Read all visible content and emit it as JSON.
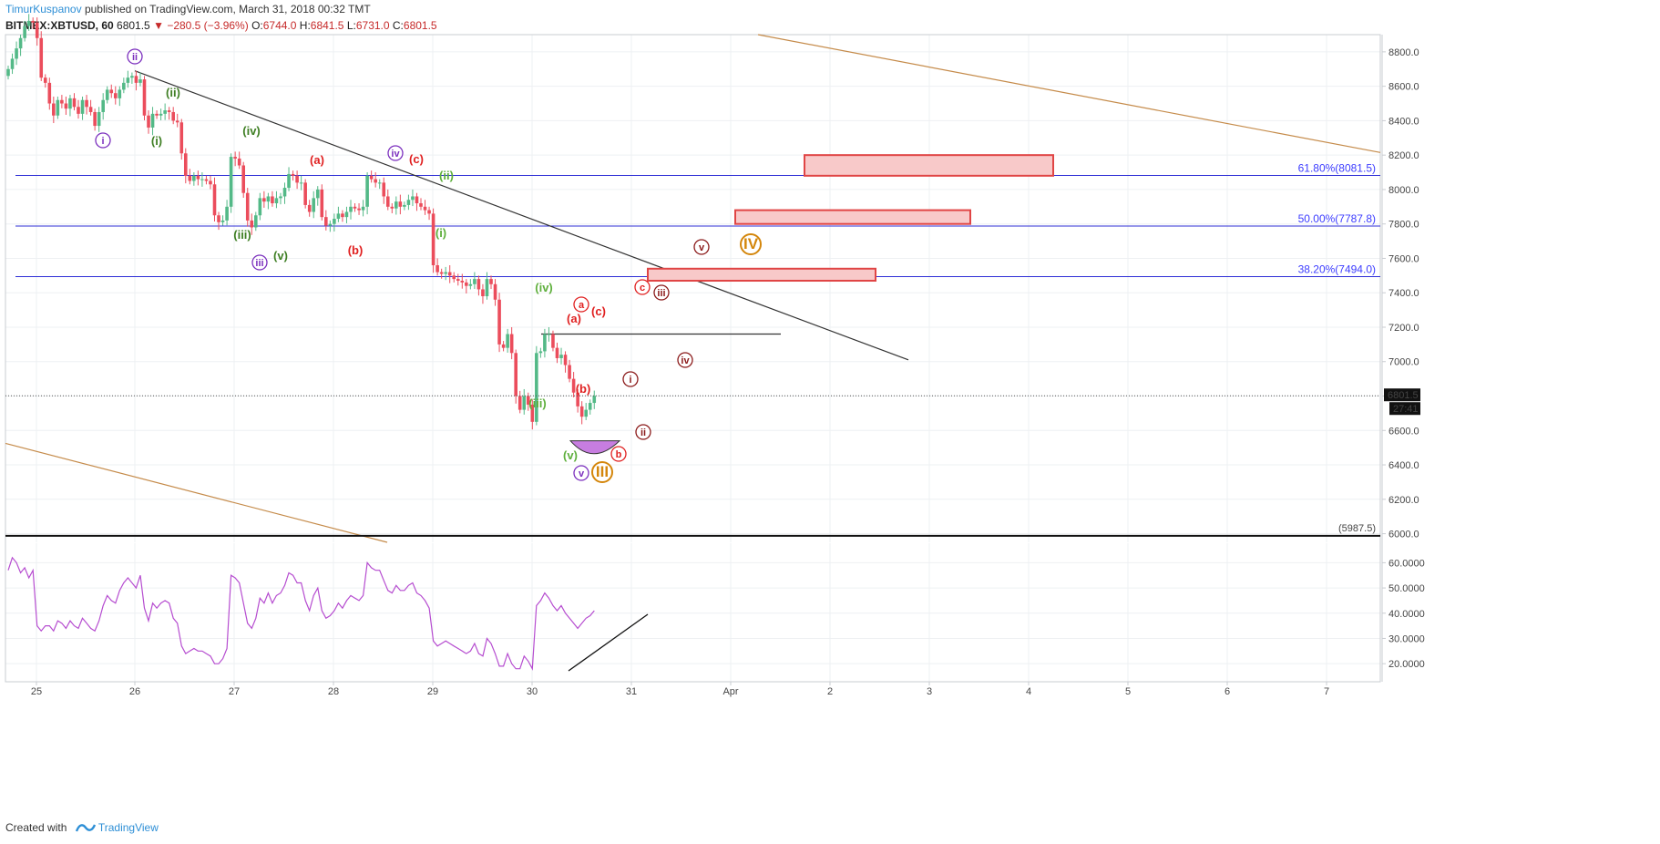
{
  "header": {
    "author": "TimurKuspanov",
    "published": "published on TradingView.com, March 31, 2018 00:32 TMT"
  },
  "symbol": {
    "name": "BITMEX:XBTUSD, 60",
    "last": "6801.5",
    "arrow": "▼",
    "change": "−280.5 (−3.96%)",
    "open_label": "O:",
    "open": "6744.0",
    "high_label": "H:",
    "high": "6841.5",
    "low_label": "L:",
    "low": "6731.0",
    "close_label": "C:",
    "close": "6801.5"
  },
  "footer": {
    "created_with": "Created with",
    "brand": "TradingView"
  },
  "colors": {
    "up": "#53b987",
    "down": "#eb4d5c",
    "fib": "#2f2fd6",
    "channel": "#c58b4a",
    "rsi": "#b64dd0",
    "zone_fill": "#f8c9c9",
    "zone_stroke": "#e04545"
  },
  "chart_data": {
    "type": "candlestick",
    "x_ticks": [
      "25",
      "26",
      "27",
      "28",
      "29",
      "30",
      "31",
      "Apr",
      "2",
      "3",
      "4",
      "5",
      "6",
      "7"
    ],
    "y_ticks": [
      "8800.0",
      "8600.0",
      "8400.0",
      "8200.0",
      "8000.0",
      "7800.0",
      "7600.0",
      "7400.0",
      "7200.0",
      "7000.0",
      "6800.0",
      "6600.0",
      "6400.0",
      "6200.0",
      "6000.0"
    ],
    "ylim": [
      5950,
      8900
    ],
    "last_price": "6801.5",
    "countdown": "27:41",
    "fib_levels": [
      {
        "label": "61.80%(8081.5)",
        "price": 8081.5
      },
      {
        "label": "50.00%(7787.8)",
        "price": 7787.8
      },
      {
        "label": "38.20%(7494.0)",
        "price": 7494.0
      }
    ],
    "support_label": "(5987.5)",
    "support_price": 5987.5,
    "closes": [
      8700,
      8760,
      8820,
      8880,
      8950,
      8980,
      8970,
      8880,
      8650,
      8620,
      8500,
      8430,
      8520,
      8500,
      8470,
      8530,
      8480,
      8440,
      8520,
      8480,
      8450,
      8370,
      8450,
      8520,
      8580,
      8560,
      8530,
      8580,
      8620,
      8650,
      8660,
      8620,
      8640,
      8430,
      8360,
      8440,
      8430,
      8440,
      8460,
      8450,
      8400,
      8390,
      8210,
      8080,
      8050,
      8080,
      8060,
      8060,
      8050,
      8030,
      7850,
      7810,
      7820,
      7900,
      8190,
      8180,
      8140,
      7980,
      7820,
      7780,
      7850,
      7950,
      7930,
      7960,
      7920,
      7950,
      7960,
      8010,
      8090,
      8080,
      8040,
      8040,
      7910,
      7870,
      7950,
      8000,
      7840,
      7790,
      7800,
      7830,
      7860,
      7840,
      7870,
      7900,
      7890,
      7880,
      7900,
      8080,
      8060,
      8040,
      8040,
      7960,
      7900,
      7890,
      7930,
      7900,
      7910,
      7940,
      7960,
      7920,
      7900,
      7880,
      7860,
      7560,
      7520,
      7510,
      7520,
      7500,
      7480,
      7470,
      7460,
      7440,
      7450,
      7480,
      7420,
      7380,
      7480,
      7450,
      7360,
      7100,
      7080,
      7160,
      7050,
      6800,
      6720,
      6800,
      6750,
      6650,
      7050,
      7060,
      7160,
      7160,
      7080,
      7020,
      7040,
      6980,
      6900,
      6820,
      6740,
      6680,
      6720,
      6760,
      6801.5
    ],
    "rsi": {
      "ylim": [
        15,
        67
      ],
      "y_ticks": [
        "60.0000",
        "50.0000",
        "40.0000",
        "30.0000",
        "20.0000"
      ],
      "values": [
        57,
        62,
        60,
        56,
        58,
        54,
        57,
        35,
        33,
        35,
        35,
        33,
        37,
        36,
        34,
        37,
        35,
        34,
        38,
        36,
        34,
        33,
        37,
        43,
        47,
        45,
        44,
        49,
        52,
        54,
        52,
        50,
        55,
        42,
        37,
        44,
        42,
        44,
        45,
        44,
        38,
        36,
        27,
        24,
        25,
        26,
        25,
        25,
        24,
        23,
        20,
        20,
        22,
        26,
        55,
        54,
        52,
        44,
        36,
        34,
        38,
        46,
        44,
        48,
        44,
        47,
        48,
        51,
        56,
        55,
        52,
        52,
        45,
        41,
        47,
        50,
        41,
        38,
        39,
        41,
        44,
        42,
        45,
        47,
        46,
        45,
        47,
        60,
        58,
        57,
        57,
        53,
        49,
        48,
        51,
        49,
        49,
        51,
        52,
        48,
        47,
        45,
        42,
        29,
        27,
        28,
        29,
        28,
        27,
        26,
        25,
        24,
        25,
        28,
        24,
        23,
        30,
        28,
        24,
        19,
        19,
        24,
        20,
        18,
        18,
        23,
        21,
        18,
        43,
        45,
        48,
        46,
        43,
        41,
        43,
        40,
        38,
        36,
        34,
        36,
        38,
        39,
        41
      ]
    },
    "wave_labels": [
      {
        "t": "ii",
        "style": "circle",
        "color": "#7b2fbe"
      },
      {
        "t": "i",
        "style": "circle",
        "color": "#7b2fbe"
      },
      {
        "t": "(ii)",
        "style": "plain",
        "color": "#3f7f24"
      },
      {
        "t": "(i)",
        "style": "plain",
        "color": "#3f7f24"
      },
      {
        "t": "(iv)",
        "style": "plain",
        "color": "#3f7f24"
      },
      {
        "t": "(a)",
        "style": "plain",
        "color": "#e02020"
      },
      {
        "t": "iv",
        "style": "circle",
        "color": "#7b2fbe"
      },
      {
        "t": "(c)",
        "style": "plain",
        "color": "#e02020"
      },
      {
        "t": "(ii)",
        "style": "plain",
        "color": "#5eaf3c"
      },
      {
        "t": "(iii)",
        "style": "plain",
        "color": "#3f7f24"
      },
      {
        "t": "iii",
        "style": "circle",
        "color": "#7b2fbe"
      },
      {
        "t": "(v)",
        "style": "plain",
        "color": "#3f7f24"
      },
      {
        "t": "(b)",
        "style": "plain",
        "color": "#e02020"
      },
      {
        "t": "(i)",
        "style": "plain",
        "color": "#5eaf3c"
      },
      {
        "t": "v",
        "style": "circle",
        "color": "#8b1a1a"
      },
      {
        "t": "IV",
        "style": "circle-big",
        "color": "#d4860b"
      },
      {
        "t": "(iv)",
        "style": "plain",
        "color": "#5eaf3c"
      },
      {
        "t": "c",
        "style": "circle",
        "color": "#e02020"
      },
      {
        "t": "iii",
        "style": "circle",
        "color": "#8b1a1a"
      },
      {
        "t": "a",
        "style": "circle",
        "color": "#e02020"
      },
      {
        "t": "(a)",
        "style": "plain",
        "color": "#e02020"
      },
      {
        "t": "(c)",
        "style": "plain",
        "color": "#e02020"
      },
      {
        "t": "iv",
        "style": "circle",
        "color": "#8b1a1a"
      },
      {
        "t": "i",
        "style": "circle",
        "color": "#8b1a1a"
      },
      {
        "t": "(b)",
        "style": "plain",
        "color": "#e02020"
      },
      {
        "t": "(iii)",
        "style": "plain",
        "color": "#5eaf3c"
      },
      {
        "t": "ii",
        "style": "circle",
        "color": "#8b1a1a"
      },
      {
        "t": "b",
        "style": "circle",
        "color": "#e02020"
      },
      {
        "t": "(v)",
        "style": "plain",
        "color": "#5eaf3c"
      },
      {
        "t": "v",
        "style": "circle",
        "color": "#7b2fbe"
      },
      {
        "t": "III",
        "style": "circle-big",
        "color": "#d4860b"
      }
    ]
  }
}
